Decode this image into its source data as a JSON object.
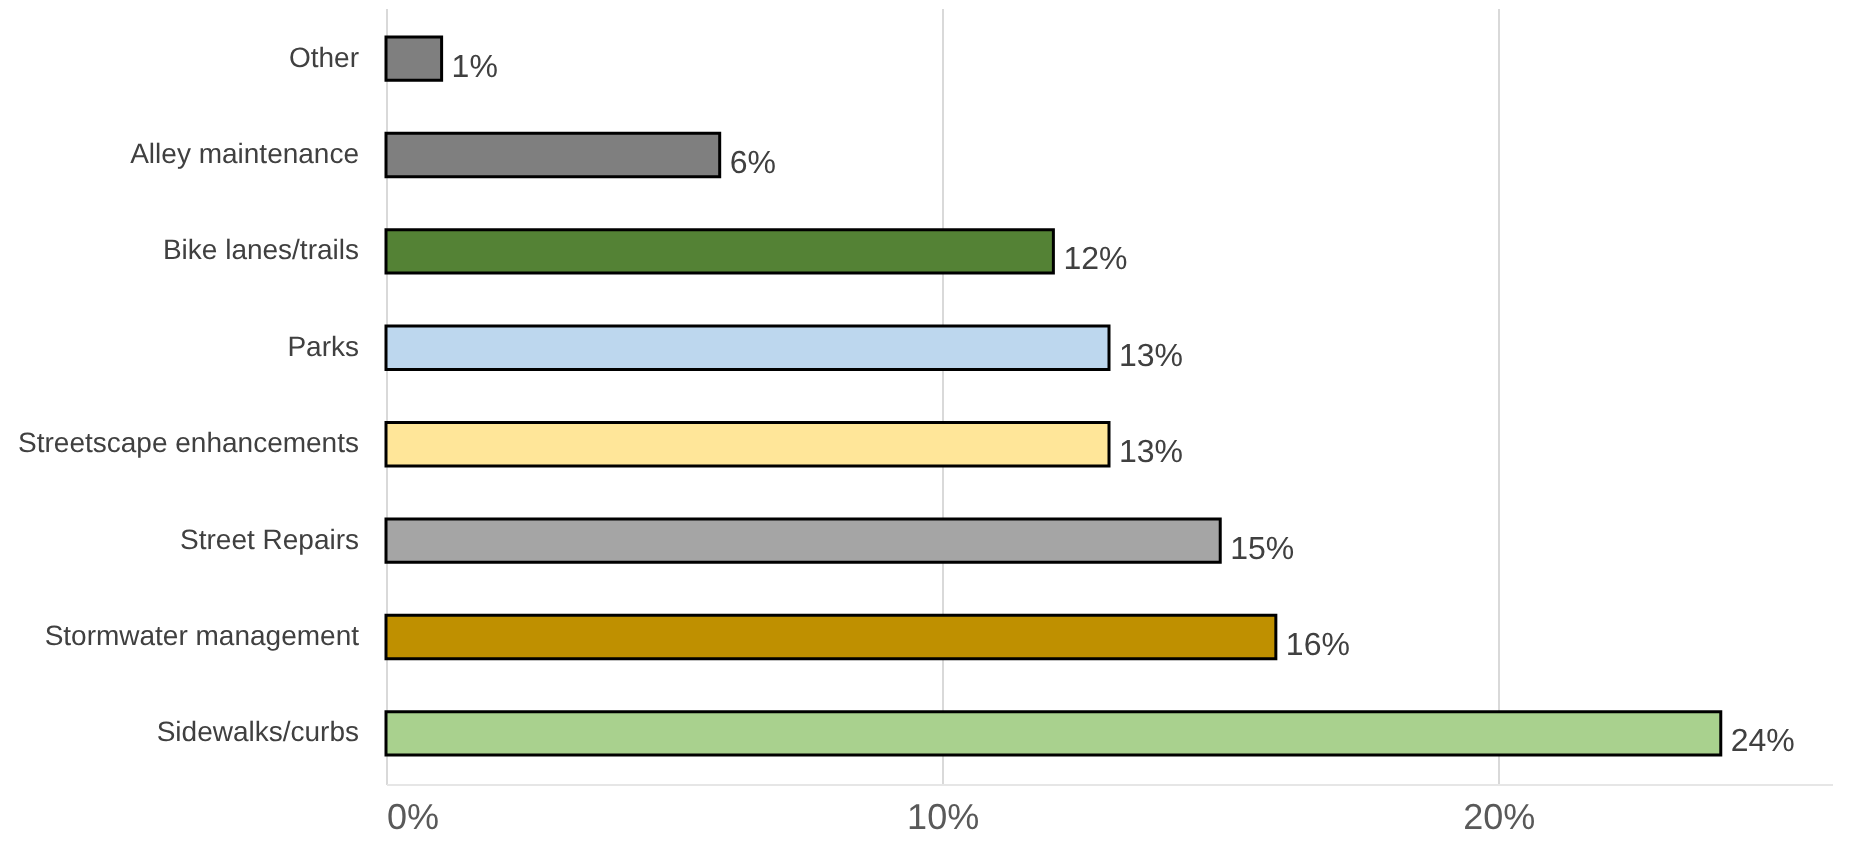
{
  "chart_data": {
    "type": "bar",
    "orientation": "horizontal",
    "categories": [
      "Other",
      "Alley maintenance",
      "Bike lanes/trails",
      "Parks",
      "Streetscape enhancements",
      "Street Repairs",
      "Stormwater management",
      "Sidewalks/curbs"
    ],
    "values": [
      1,
      6,
      12,
      13,
      13,
      15,
      16,
      24
    ],
    "colors": [
      "#7f7f7f",
      "#7f7f7f",
      "#548235",
      "#bdd7ee",
      "#ffe699",
      "#a5a5a5",
      "#bf9000",
      "#a9d18e"
    ],
    "value_labels": [
      "1%",
      "6%",
      "12%",
      "13%",
      "13%",
      "15%",
      "16%",
      "24%"
    ],
    "xlim": [
      0,
      26
    ],
    "xticks": [
      {
        "value": 0,
        "label": "0%"
      },
      {
        "value": 10,
        "label": "10%"
      },
      {
        "value": 20,
        "label": "20%"
      }
    ],
    "grid": "x"
  }
}
